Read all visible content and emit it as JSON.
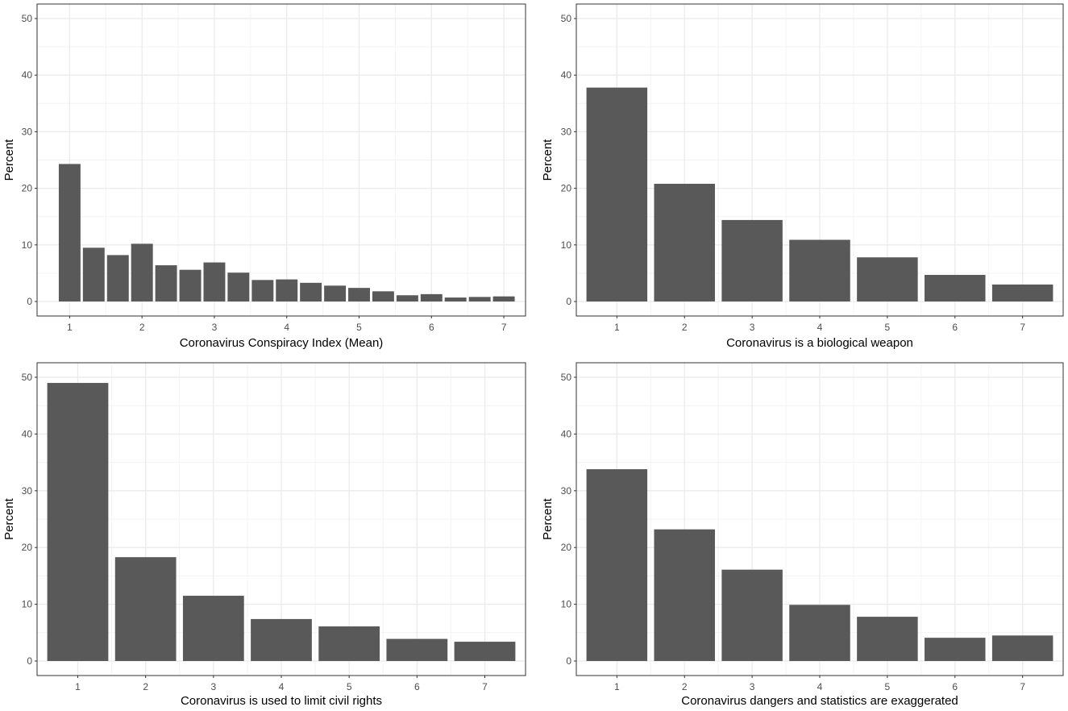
{
  "figure": {
    "colors": {
      "bar": "#595959",
      "panel_border": "#333333",
      "grid_major": "#ebebeb",
      "grid_minor": "#f3f3f3",
      "tick_text": "#4d4d4d",
      "title_text": "#000000"
    }
  },
  "chart_data": [
    {
      "type": "bar",
      "title": "",
      "xlabel": "Coronavirus Conspiracy Index (Mean)",
      "ylabel": "Percent",
      "x_ticks": [
        "1",
        "2",
        "3",
        "4",
        "5",
        "6",
        "7"
      ],
      "x_tick_values": [
        1,
        2,
        3,
        4,
        5,
        6,
        7
      ],
      "xlim": [
        0.55,
        7.3
      ],
      "bar_width": 0.3,
      "ylim": [
        0,
        50
      ],
      "y_ticks": [
        0,
        10,
        20,
        30,
        40,
        50
      ],
      "x": [
        1.0,
        1.333,
        1.667,
        2.0,
        2.333,
        2.667,
        3.0,
        3.333,
        3.667,
        4.0,
        4.333,
        4.667,
        5.0,
        5.333,
        5.667,
        6.0,
        6.333,
        6.667,
        7.0
      ],
      "values": [
        24.3,
        9.5,
        8.2,
        10.2,
        6.4,
        5.6,
        6.9,
        5.1,
        3.8,
        3.9,
        3.3,
        2.8,
        2.4,
        1.8,
        1.1,
        1.3,
        0.7,
        0.8,
        0.9
      ],
      "grid": true
    },
    {
      "type": "bar",
      "title": "",
      "xlabel": "Coronavirus is a biological weapon",
      "ylabel": "Percent",
      "categories": [
        "1",
        "2",
        "3",
        "4",
        "5",
        "6",
        "7"
      ],
      "ylim": [
        0,
        50
      ],
      "y_ticks": [
        0,
        10,
        20,
        30,
        40,
        50
      ],
      "values": [
        37.8,
        20.8,
        14.4,
        10.9,
        7.8,
        4.7,
        3.0
      ],
      "grid": true
    },
    {
      "type": "bar",
      "title": "",
      "xlabel": "Coronavirus is used to limit civil rights",
      "ylabel": "Percent",
      "categories": [
        "1",
        "2",
        "3",
        "4",
        "5",
        "6",
        "7"
      ],
      "ylim": [
        0,
        50
      ],
      "y_ticks": [
        0,
        10,
        20,
        30,
        40,
        50
      ],
      "values": [
        49.0,
        18.3,
        11.5,
        7.4,
        6.1,
        3.9,
        3.4
      ],
      "grid": true
    },
    {
      "type": "bar",
      "title": "",
      "xlabel": "Coronavirus dangers and statistics are exaggerated",
      "ylabel": "Percent",
      "categories": [
        "1",
        "2",
        "3",
        "4",
        "5",
        "6",
        "7"
      ],
      "ylim": [
        0,
        50
      ],
      "y_ticks": [
        0,
        10,
        20,
        30,
        40,
        50
      ],
      "values": [
        33.8,
        23.2,
        16.1,
        9.9,
        7.8,
        4.1,
        4.5
      ],
      "grid": true
    }
  ]
}
